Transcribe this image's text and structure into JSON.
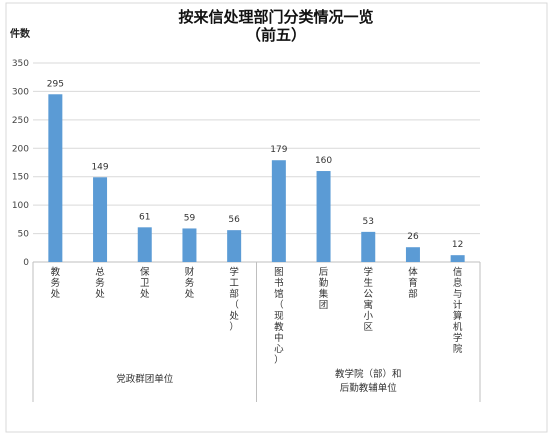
{
  "chart_data": {
    "type": "bar",
    "title_line1": "按来信处理部门分类情况一览",
    "title_line2": "（前五）",
    "ylabel": "件数",
    "ylim": [
      0,
      350
    ],
    "yticks": [
      0,
      50,
      100,
      150,
      200,
      250,
      300,
      350
    ],
    "grid": true,
    "bar_color": "#5B9BD5",
    "categories": [
      "教务处",
      "总务处",
      "保卫处",
      "财务处",
      "学工部（处）",
      "图书馆（现教中心）",
      "后勤集团",
      "学生公寓小区",
      "体育部",
      "信息与计算机学院"
    ],
    "values": [
      295,
      149,
      61,
      59,
      56,
      179,
      160,
      53,
      26,
      12
    ],
    "groups": [
      {
        "label_lines": [
          "党政群团单位"
        ],
        "count": 5
      },
      {
        "label_lines": [
          "教学院（部）和",
          "后勤教辅单位"
        ],
        "count": 5
      }
    ]
  }
}
